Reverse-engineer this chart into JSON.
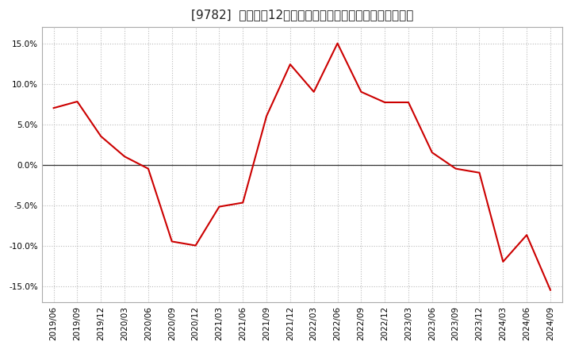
{
  "title": "[9782]  売上高の12か月移動合計の対前年同期増減率の推移",
  "line_color": "#cc0000",
  "bg_color": "#ffffff",
  "plot_bg_color": "#ffffff",
  "grid_color": "#bbbbbb",
  "zero_line_color": "#333333",
  "ylim": [
    -0.17,
    0.17
  ],
  "yticks": [
    -0.15,
    -0.1,
    -0.05,
    0.0,
    0.05,
    0.1,
    0.15
  ],
  "dates": [
    "2019/06",
    "2019/09",
    "2019/12",
    "2020/03",
    "2020/06",
    "2020/09",
    "2020/12",
    "2021/03",
    "2021/06",
    "2021/09",
    "2021/12",
    "2022/03",
    "2022/06",
    "2022/09",
    "2022/12",
    "2023/03",
    "2023/06",
    "2023/09",
    "2023/12",
    "2024/03",
    "2024/06",
    "2024/09"
  ],
  "values": [
    0.07,
    0.078,
    0.035,
    0.01,
    -0.005,
    -0.095,
    -0.1,
    -0.052,
    -0.047,
    0.06,
    0.124,
    0.09,
    0.15,
    0.09,
    0.077,
    0.077,
    0.015,
    -0.005,
    -0.01,
    -0.12,
    -0.087,
    -0.155
  ],
  "title_fontsize": 11,
  "tick_fontsize": 7.5,
  "linewidth": 1.5
}
